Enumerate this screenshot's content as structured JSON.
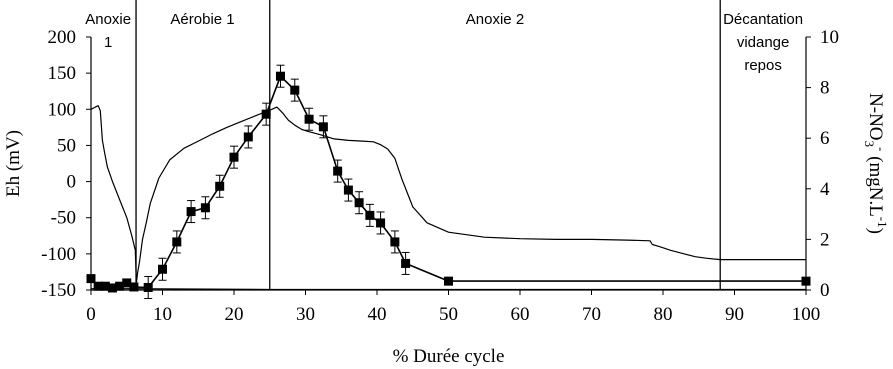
{
  "chart_data": {
    "type": "line",
    "xlabel": "% Durée cycle",
    "ylabel_left": "Eh (mV)",
    "ylabel_right": "N-NO3- (mgN.L-1)",
    "ylabel_right_parts": {
      "base": "N-NO",
      "sub": "3",
      "sup1": "-",
      "unit_pre": " (mgN.L",
      "unit_sup": "-1",
      "unit_post": ")"
    },
    "xlim": [
      0,
      100
    ],
    "xticks": [
      0,
      10,
      20,
      30,
      40,
      50,
      60,
      70,
      80,
      90,
      100
    ],
    "ylim_left": [
      -150,
      200
    ],
    "yticks_left": [
      -150,
      -100,
      -50,
      0,
      50,
      100,
      150,
      200
    ],
    "ylim_right": [
      0,
      10
    ],
    "yticks_right": [
      0,
      2,
      4,
      6,
      8,
      10
    ],
    "grid": false,
    "legend": "none",
    "phase_boundaries": [
      6.3,
      25,
      88
    ],
    "phases": [
      {
        "lines": [
          "Anoxie",
          "1"
        ],
        "x": 2.4
      },
      {
        "lines": [
          "Aérobie 1"
        ],
        "x": 15.6
      },
      {
        "lines": [
          "Anoxie 2"
        ],
        "x": 56.5
      },
      {
        "lines": [
          "Décantation",
          "vidange",
          "repos"
        ],
        "x": 94
      }
    ],
    "series": [
      {
        "axis": "left",
        "marker": "none",
        "x": [
          0,
          0.6,
          1.0,
          1.3,
          1.6,
          1.9,
          2.3,
          3,
          4,
          5,
          5.7,
          6.2,
          6.35,
          6.5,
          6.8,
          7.2,
          7.7,
          8.3,
          9.5,
          11,
          13,
          15,
          17,
          19,
          21,
          23,
          24.5,
          25.3,
          26,
          26.8,
          27.6,
          28.5,
          29.5,
          30.5,
          32,
          34,
          36,
          38,
          39.5,
          40.5,
          41.5,
          42.5,
          43.5,
          45,
          47,
          50,
          55,
          60,
          65,
          70,
          75,
          78.2,
          78.5,
          79.5,
          81,
          83,
          84.5,
          86,
          88,
          90,
          95,
          100
        ],
        "y": [
          100,
          103,
          105,
          98,
          57,
          40,
          20,
          0,
          -25,
          -50,
          -75,
          -95,
          -140,
          -127,
          -110,
          -80,
          -58,
          -30,
          5,
          30,
          46,
          56,
          66,
          75,
          83,
          91,
          97,
          100,
          103,
          95,
          85,
          78,
          72,
          69,
          65,
          59,
          57,
          56,
          55,
          51,
          45,
          32,
          3,
          -35,
          -57,
          -70,
          -77,
          -79,
          -80,
          -80,
          -81,
          -82,
          -87,
          -90,
          -95,
          -100,
          -104,
          -106,
          -108,
          -108,
          -108,
          -108
        ]
      },
      {
        "axis": "right",
        "marker": "square",
        "error_bars": true,
        "x": [
          0,
          1,
          2,
          3,
          4,
          5,
          6,
          8,
          10,
          12,
          14,
          16,
          18,
          20,
          22,
          24.5,
          26.5,
          28.5,
          30.5,
          32.5,
          34.5,
          36,
          37.5,
          39,
          40.5,
          42.5,
          44,
          50,
          100
        ],
        "y": [
          0.45,
          0.15,
          0.15,
          0.08,
          0.15,
          0.28,
          0.12,
          0.1,
          0.82,
          1.9,
          3.1,
          3.25,
          4.1,
          5.25,
          6.05,
          6.95,
          8.45,
          7.9,
          6.75,
          6.45,
          4.7,
          3.95,
          3.45,
          2.95,
          2.65,
          1.9,
          1.05,
          0.35,
          0.35
        ]
      },
      {
        "axis": "right",
        "marker": "none",
        "x": [
          0,
          6.3,
          25,
          50,
          100
        ],
        "y": [
          0.05,
          0.05,
          0.02,
          0.02,
          0.02
        ]
      }
    ]
  }
}
